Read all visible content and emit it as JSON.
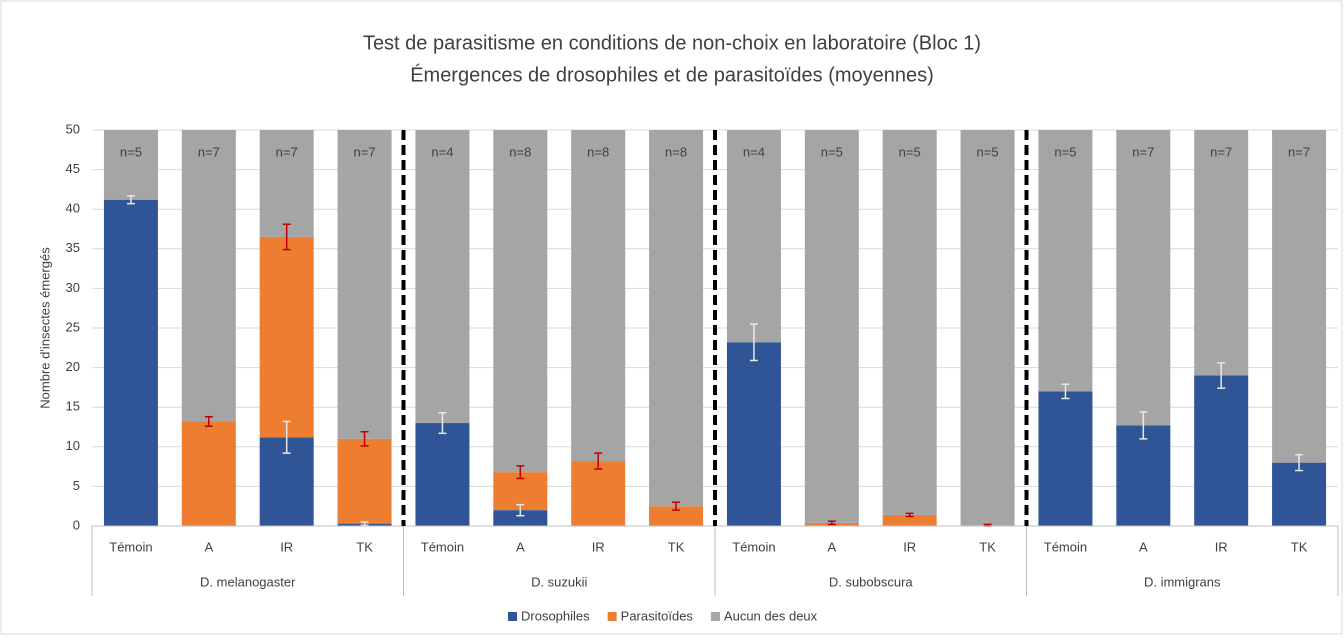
{
  "chart_data": {
    "type": "stacked_bar",
    "title": "Test de parasitisme en conditions de non-choix en laboratoire (Bloc 1)",
    "subtitle": "Émergences de drosophiles et de parasitoïdes (moyennes)",
    "y_label": "Nombre d'insectes émergés",
    "groups": [
      "D. melanogaster",
      "D. suzukii",
      "D. subobscura",
      "D. immigrans"
    ],
    "categories": [
      "Témoin",
      "A",
      "IR",
      "TK",
      "Témoin",
      "A",
      "IR",
      "TK",
      "Témoin",
      "A",
      "IR",
      "TK",
      "Témoin",
      "A",
      "IR",
      "TK"
    ],
    "annotations": [
      "n=5",
      "n=7",
      "n=7",
      "n=7",
      "n=4",
      "n=8",
      "n=8",
      "n=8",
      "n=4",
      "n=5",
      "n=5",
      "n=5",
      "n=5",
      "n=7",
      "n=7",
      "n=7"
    ],
    "series": [
      {
        "name": "Drosophiles",
        "color": "#2f5597",
        "error_color": "#e8e8e8",
        "values": [
          41.2,
          0,
          11.2,
          0.3,
          13,
          2,
          0,
          0,
          23.2,
          0,
          0,
          0,
          17,
          12.7,
          19,
          8
        ],
        "errors": [
          0.5,
          null,
          2,
          0.2,
          1.3,
          0.7,
          null,
          null,
          2.3,
          null,
          null,
          null,
          0.9,
          1.7,
          1.6,
          1.0
        ]
      },
      {
        "name": "Parasitoïdes",
        "color": "#ed7d31",
        "error_color": "#c00000",
        "values": [
          0,
          13.2,
          25.3,
          10.7,
          0,
          4.8,
          8.2,
          2.5,
          0,
          0.4,
          1.4,
          0.1,
          0,
          0,
          0,
          0
        ],
        "errors": [
          null,
          0.6,
          1.6,
          0.9,
          null,
          0.8,
          1.0,
          0.5,
          null,
          0.2,
          0.2,
          0.1,
          null,
          null,
          null,
          null
        ]
      },
      {
        "name": "Aucun des deux",
        "color": "#a5a5a5",
        "values": [
          8.8,
          36.8,
          13.5,
          39,
          37,
          43.2,
          41.8,
          47.5,
          26.8,
          49.6,
          48.6,
          49.9,
          33,
          37.3,
          31,
          42
        ]
      }
    ],
    "ylim": [
      0,
      50
    ],
    "yticks": [
      0,
      5,
      10,
      15,
      20,
      25,
      30,
      35,
      40,
      45,
      50
    ],
    "grid": true,
    "legend": "bottom"
  }
}
